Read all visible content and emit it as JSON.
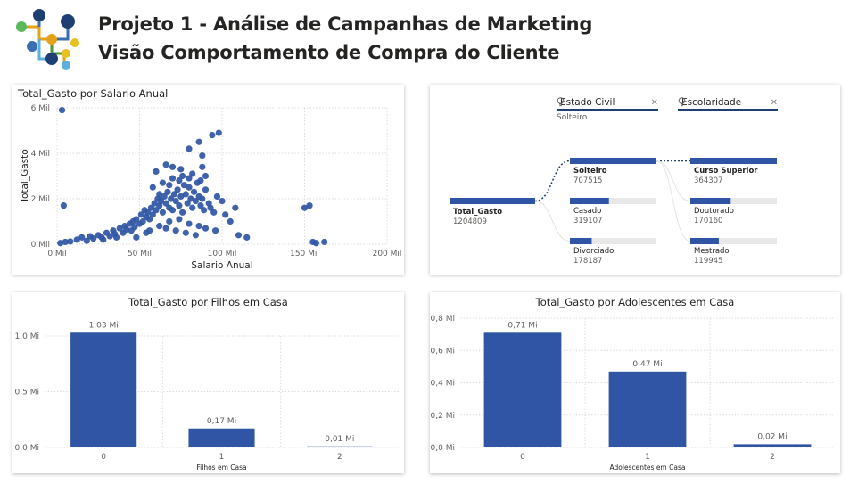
{
  "header": {
    "title_line1": "Projeto 1 - Análise de Campanhas de Marketing",
    "title_line2": "Visão Comportamento de Compra do Cliente",
    "logo_icon": "network-nodes-logo"
  },
  "colors": {
    "accent": "#2f55a4",
    "track": "#e8e8e8",
    "text": "#252423",
    "muted": "#605e5c"
  },
  "decomp": {
    "filters": [
      {
        "label": "Estado Civil",
        "selected": "Solteiro"
      },
      {
        "label": "Escolaridade",
        "selected": ""
      }
    ],
    "root": {
      "label": "Total_Gasto",
      "value": "1204809"
    },
    "level1": [
      {
        "label": "Solteiro",
        "value": "707515",
        "num": 707515
      },
      {
        "label": "Casado",
        "value": "319107",
        "num": 319107
      },
      {
        "label": "Divorciado",
        "value": "178187",
        "num": 178187
      }
    ],
    "level2": [
      {
        "label": "Curso Superior",
        "value": "364307",
        "num": 364307
      },
      {
        "label": "Doutorado",
        "value": "170160",
        "num": 170160
      },
      {
        "label": "Mestrado",
        "value": "119945",
        "num": 119945
      }
    ]
  },
  "chart_data": [
    {
      "type": "scatter",
      "title": "Total_Gasto por Salario Anual",
      "xlabel": "Salario Anual",
      "ylabel": "Total_Gasto",
      "xlim": [
        0,
        200000
      ],
      "ylim": [
        0,
        6000
      ],
      "xticks": [
        0,
        50000,
        100000,
        150000,
        200000
      ],
      "xtick_labels": [
        "0 Mil",
        "50 Mil",
        "100 Mil",
        "150 Mil",
        "200 Mil"
      ],
      "yticks": [
        0,
        2000,
        4000,
        6000
      ],
      "ytick_labels": [
        "0 Mil",
        "2 Mil",
        "4 Mil",
        "6 Mil"
      ],
      "grid": true,
      "points": [
        [
          3000,
          5900
        ],
        [
          4000,
          1700
        ],
        [
          2000,
          50
        ],
        [
          5000,
          100
        ],
        [
          8000,
          120
        ],
        [
          12000,
          200
        ],
        [
          15000,
          300
        ],
        [
          18000,
          150
        ],
        [
          20000,
          350
        ],
        [
          22000,
          250
        ],
        [
          25000,
          400
        ],
        [
          27000,
          300
        ],
        [
          28000,
          200
        ],
        [
          30000,
          500
        ],
        [
          32000,
          350
        ],
        [
          34000,
          600
        ],
        [
          35000,
          450
        ],
        [
          36000,
          300
        ],
        [
          38000,
          700
        ],
        [
          40000,
          500
        ],
        [
          41000,
          800
        ],
        [
          42000,
          650
        ],
        [
          44000,
          900
        ],
        [
          45000,
          600
        ],
        [
          46000,
          1000
        ],
        [
          47000,
          750
        ],
        [
          48000,
          1100
        ],
        [
          50000,
          900
        ],
        [
          51000,
          1300
        ],
        [
          52000,
          1000
        ],
        [
          53000,
          1500
        ],
        [
          54000,
          1200
        ],
        [
          55000,
          1400
        ],
        [
          56000,
          1100
        ],
        [
          57000,
          1600
        ],
        [
          58000,
          1300
        ],
        [
          59000,
          1800
        ],
        [
          60000,
          1500
        ],
        [
          61000,
          2000
        ],
        [
          62000,
          1700
        ],
        [
          63000,
          1900
        ],
        [
          64000,
          1400
        ],
        [
          65000,
          2100
        ],
        [
          66000,
          1800
        ],
        [
          67000,
          2300
        ],
        [
          68000,
          1600
        ],
        [
          69000,
          2000
        ],
        [
          70000,
          1500
        ],
        [
          71000,
          2200
        ],
        [
          72000,
          1900
        ],
        [
          73000,
          2400
        ],
        [
          74000,
          1700
        ],
        [
          75000,
          2100
        ],
        [
          76000,
          1400
        ],
        [
          77000,
          2600
        ],
        [
          78000,
          2200
        ],
        [
          79000,
          1800
        ],
        [
          80000,
          2500
        ],
        [
          81000,
          2000
        ],
        [
          82000,
          1600
        ],
        [
          83000,
          2300
        ],
        [
          84000,
          1900
        ],
        [
          85000,
          2700
        ],
        [
          86000,
          2100
        ],
        [
          87000,
          1700
        ],
        [
          88000,
          2000
        ],
        [
          89000,
          1500
        ],
        [
          90000,
          2400
        ],
        [
          92000,
          1800
        ],
        [
          93000,
          1600
        ],
        [
          95000,
          1400
        ],
        [
          97000,
          2100
        ],
        [
          60000,
          3200
        ],
        [
          66000,
          3500
        ],
        [
          70000,
          3400
        ],
        [
          75000,
          3300
        ],
        [
          80000,
          4200
        ],
        [
          86000,
          4500
        ],
        [
          88000,
          3900
        ],
        [
          87000,
          2800
        ],
        [
          90000,
          3000
        ],
        [
          94000,
          4800
        ],
        [
          98000,
          4900
        ],
        [
          100000,
          1900
        ],
        [
          102000,
          1300
        ],
        [
          105000,
          1000
        ],
        [
          108000,
          1600
        ],
        [
          110000,
          400
        ],
        [
          115000,
          300
        ],
        [
          150000,
          1600
        ],
        [
          153000,
          1700
        ],
        [
          155000,
          100
        ],
        [
          157000,
          50
        ],
        [
          162000,
          100
        ],
        [
          48000,
          300
        ],
        [
          56000,
          600
        ],
        [
          62000,
          800
        ],
        [
          68000,
          1000
        ],
        [
          74000,
          1100
        ],
        [
          80000,
          900
        ],
        [
          86000,
          800
        ],
        [
          54000,
          500
        ],
        [
          66000,
          700
        ],
        [
          72000,
          600
        ],
        [
          78000,
          500
        ],
        [
          84000,
          400
        ],
        [
          90000,
          700
        ],
        [
          96000,
          600
        ],
        [
          58000,
          2500
        ],
        [
          64000,
          2700
        ],
        [
          70000,
          2900
        ],
        [
          76000,
          3000
        ],
        [
          82000,
          3100
        ],
        [
          88000,
          3400
        ],
        [
          62000,
          2200
        ],
        [
          68000,
          2600
        ],
        [
          74000,
          2800
        ],
        [
          80000,
          2900
        ]
      ]
    },
    {
      "type": "bar",
      "title": "Total_Gasto por Filhos em Casa",
      "xlabel": "Filhos em Casa",
      "ylabel": "",
      "categories": [
        "0",
        "1",
        "2"
      ],
      "values": [
        1.03,
        0.17,
        0.01
      ],
      "data_labels": [
        "1,03 Mi",
        "0,17 Mi",
        "0,01 Mi"
      ],
      "ylim": [
        0,
        1.0
      ],
      "yticks": [
        0,
        0.5,
        1.0
      ],
      "ytick_labels": [
        "0,0 Mi",
        "0,5 Mi",
        "1,0 Mi"
      ],
      "grid": true
    },
    {
      "type": "bar",
      "title": "Total_Gasto por Adolescentes em Casa",
      "xlabel": "Adolescentes em Casa",
      "ylabel": "",
      "categories": [
        "0",
        "1",
        "2"
      ],
      "values": [
        0.71,
        0.47,
        0.02
      ],
      "data_labels": [
        "0,71 Mi",
        "0,47 Mi",
        "0,02 Mi"
      ],
      "ylim": [
        0,
        0.8
      ],
      "yticks": [
        0,
        0.2,
        0.4,
        0.6,
        0.8
      ],
      "ytick_labels": [
        "0,0 Mi",
        "0,2 Mi",
        "0,4 Mi",
        "0,6 Mi",
        "0,8 Mi"
      ],
      "grid": true
    }
  ]
}
